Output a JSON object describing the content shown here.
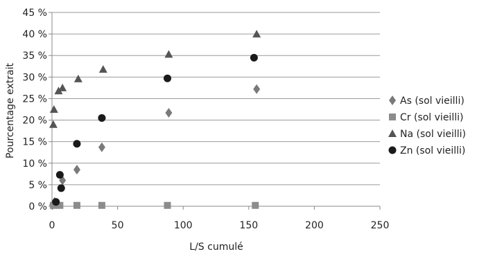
{
  "chart_data": {
    "type": "scatter",
    "title": "",
    "xlabel": "L/S cumulé",
    "ylabel": "Pourcentage extrait",
    "xlim": [
      0,
      250
    ],
    "ylim": [
      0,
      45
    ],
    "x_ticks": [
      "0",
      "50",
      "100",
      "150",
      "200",
      "250"
    ],
    "y_ticks": [
      "0 %",
      "5 %",
      "10 %",
      "15 %",
      "20 %",
      "25 %",
      "30 %",
      "35 %",
      "40 %",
      "45 %"
    ],
    "grid": "horizontal",
    "legend_position": "right",
    "series": [
      {
        "name": "As (sol vieilli)",
        "marker": "diamond",
        "color": "#7a7a7a",
        "x": [
          0.5,
          2,
          8,
          19,
          38,
          89,
          156
        ],
        "y": [
          0.3,
          1.0,
          6.0,
          8.5,
          13.7,
          21.7,
          27.2
        ]
      },
      {
        "name": "Cr (sol vieilli)",
        "marker": "square",
        "color": "#8c8c8c",
        "x": [
          1,
          6,
          19,
          38,
          88,
          155
        ],
        "y": [
          0.2,
          0.2,
          0.2,
          0.2,
          0.2,
          0.2
        ]
      },
      {
        "name": "Na (sol vieilli)",
        "marker": "triangle",
        "color": "#555555",
        "x": [
          1,
          1.5,
          5,
          8,
          20,
          39,
          89,
          156
        ],
        "y": [
          19.0,
          22.5,
          26.8,
          27.5,
          29.6,
          31.8,
          35.3,
          40.0
        ]
      },
      {
        "name": "Zn (sol vieilli)",
        "marker": "circle",
        "color": "#1a1a1a",
        "x": [
          3,
          6,
          7,
          19,
          38,
          88,
          154
        ],
        "y": [
          1.0,
          7.3,
          4.2,
          14.5,
          20.5,
          29.7,
          34.5
        ]
      }
    ]
  }
}
